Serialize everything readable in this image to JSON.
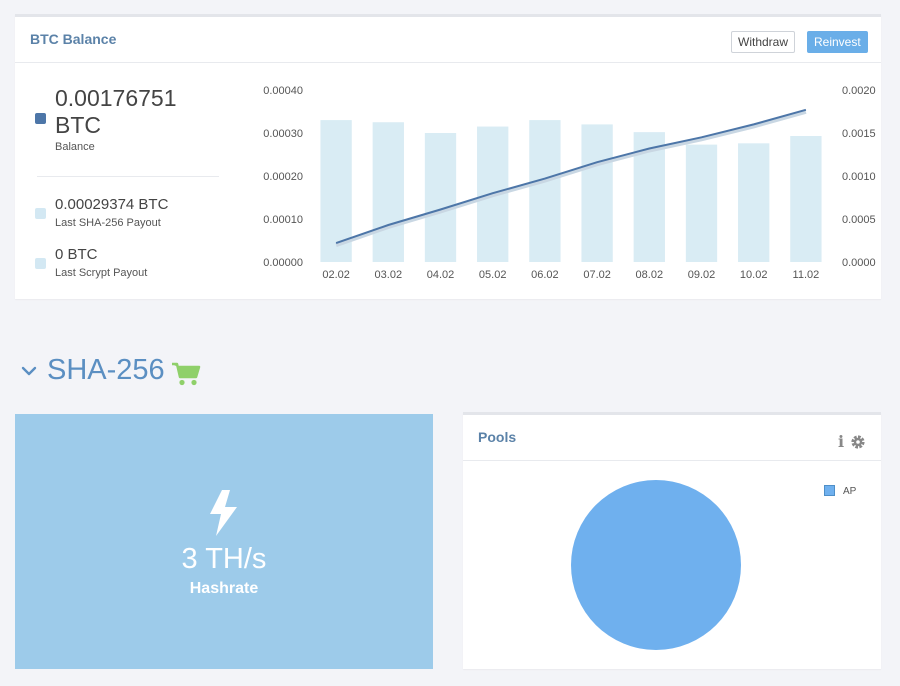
{
  "btc_balance": {
    "title": "BTC Balance",
    "withdraw_label": "Withdraw",
    "reinvest_label": "Reinvest",
    "balance_value": "0.00176751 BTC",
    "balance_label": "Balance",
    "sha_payout_value": "0.00029374 BTC",
    "sha_payout_label": "Last SHA-256 Payout",
    "scrypt_payout_value": "0 BTC",
    "scrypt_payout_label": "Last Scrypt Payout",
    "colors": {
      "balance": "#4d76a8",
      "payout": "#d3e8f3",
      "accent": "#6aaee8"
    }
  },
  "chart_data": {
    "type": "bar",
    "categories": [
      "02.02",
      "03.02",
      "04.02",
      "05.02",
      "06.02",
      "07.02",
      "08.02",
      "09.02",
      "10.02",
      "11.02"
    ],
    "series": [
      {
        "type": "bar",
        "axis": "left",
        "values": [
          0.00033,
          0.000325,
          0.0003,
          0.000315,
          0.00033,
          0.00032,
          0.000302,
          0.000273,
          0.000276,
          0.000293
        ]
      },
      {
        "type": "line",
        "axis": "right",
        "values": [
          0.00022,
          0.00043,
          0.00061,
          0.0008,
          0.00097,
          0.00116,
          0.00132,
          0.00145,
          0.0016,
          0.00177
        ]
      }
    ],
    "y_left": {
      "min": 0,
      "max": 0.0004,
      "ticks": [
        "0.00000",
        "0.00010",
        "0.00020",
        "0.00030",
        "0.00040"
      ]
    },
    "y_right": {
      "min": 0,
      "max": 0.002,
      "ticks": [
        "0.0000",
        "0.0005",
        "0.0010",
        "0.0015",
        "0.0020"
      ]
    },
    "grid": false,
    "title": "",
    "xlabel": "",
    "ylabel": ""
  },
  "sha256": {
    "title": "SHA-256",
    "hashrate_value": "3 TH/s",
    "hashrate_label": "Hashrate",
    "tile_color": "#9dcbea",
    "cart_color": "#8fd06a"
  },
  "pools": {
    "title": "Pools",
    "legend": [
      "AP"
    ],
    "shares": [
      1.0
    ],
    "slice_color": "#6fb0ee"
  },
  "icons": [
    "chevron-down-icon",
    "cart-icon",
    "bolt-icon",
    "info-icon",
    "gear-icon"
  ]
}
